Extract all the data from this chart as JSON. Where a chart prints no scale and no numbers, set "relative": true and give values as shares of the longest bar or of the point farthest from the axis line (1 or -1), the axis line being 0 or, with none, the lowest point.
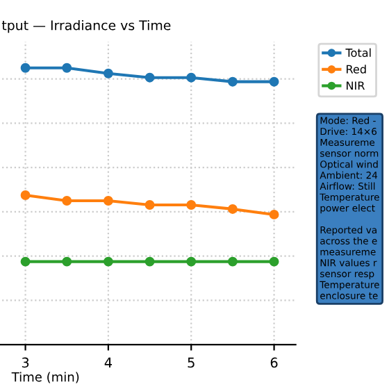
{
  "chart_data": {
    "type": "line",
    "title": "tput — Irradiance vs Time",
    "xlabel": "Time (min)",
    "relative": true,
    "x": [
      3,
      3.5,
      4,
      4.5,
      5,
      5.5,
      6
    ],
    "series": [
      {
        "name": "Total",
        "color": "#1f77b4",
        "values": [
          1,
          1,
          0.98,
          0.965,
          0.965,
          0.95,
          0.95
        ]
      },
      {
        "name": "Red",
        "color": "#ff7f0e",
        "values": [
          0.54,
          0.52,
          0.52,
          0.505,
          0.505,
          0.49,
          0.47
        ]
      },
      {
        "name": "NIR",
        "color": "#2ca02c",
        "values": [
          0.3,
          0.3,
          0.3,
          0.3,
          0.3,
          0.3,
          0.3
        ]
      }
    ],
    "xlim": [
      2.67,
      6.26
    ],
    "xticks": [
      3,
      4,
      5,
      6
    ],
    "grid": true,
    "legend": "top right",
    "marker": "circle",
    "line_style": "solid",
    "annotations": [
      "Mode: Red -\nDrive: 14×6\nMeasureme\nsensor norm\nOptical wind\nAmbient: 24\nAirflow: Still\nTemperature\npower elect\n\nReported va\nacross the e\nmeasureme\nNIR values r\nsensor resp\nTemperature\nenclosure te"
    ]
  }
}
